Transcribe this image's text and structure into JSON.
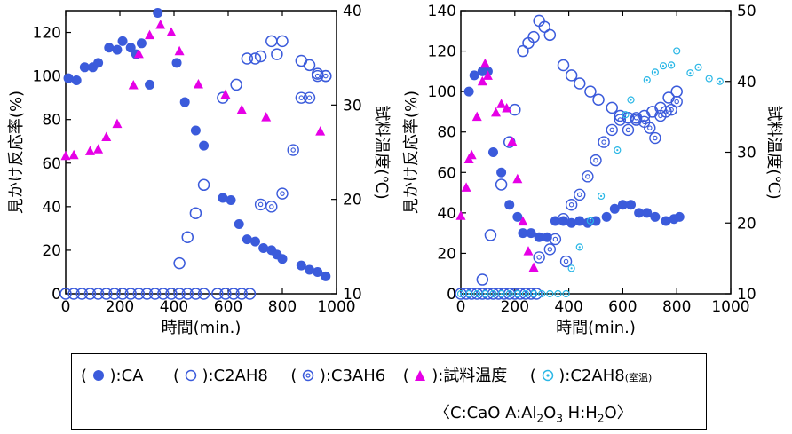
{
  "chart_data": [
    {
      "type": "scatter",
      "title": "",
      "xlabel": "時間(min.)",
      "ylabel_left": "見かけ反応率(%)",
      "ylabel_right": "試料温度(℃)",
      "xlim": [
        0,
        1000
      ],
      "ylim_left": [
        0,
        130
      ],
      "ylim_right": [
        10,
        40
      ],
      "x_ticks": [
        0,
        200,
        400,
        600,
        800,
        1000
      ],
      "y_ticks_left": [
        0,
        20,
        40,
        60,
        80,
        100,
        120
      ],
      "y_ticks_right": [
        10,
        20,
        30,
        40
      ],
      "series": [
        {
          "name": "CA",
          "axis": "left",
          "marker": "filled-circle",
          "color": "#3b5bdb",
          "points": [
            [
              10,
              99
            ],
            [
              40,
              98
            ],
            [
              70,
              104
            ],
            [
              100,
              104
            ],
            [
              120,
              106
            ],
            [
              160,
              113
            ],
            [
              190,
              112
            ],
            [
              210,
              116
            ],
            [
              240,
              113
            ],
            [
              260,
              110
            ],
            [
              280,
              115
            ],
            [
              310,
              96
            ],
            [
              340,
              129
            ],
            [
              410,
              106
            ],
            [
              440,
              88
            ],
            [
              480,
              75
            ],
            [
              510,
              68
            ],
            [
              580,
              44
            ],
            [
              610,
              43
            ],
            [
              640,
              32
            ],
            [
              670,
              25
            ],
            [
              700,
              24
            ],
            [
              730,
              21
            ],
            [
              760,
              20
            ],
            [
              780,
              18
            ],
            [
              800,
              16
            ],
            [
              870,
              13
            ],
            [
              900,
              11
            ],
            [
              930,
              10
            ],
            [
              960,
              8
            ]
          ]
        },
        {
          "name": "C2AH8",
          "axis": "left",
          "marker": "open-circle",
          "color": "#3b5bdb",
          "points": [
            [
              0,
              0
            ],
            [
              30,
              0
            ],
            [
              60,
              0
            ],
            [
              90,
              0
            ],
            [
              120,
              0
            ],
            [
              150,
              0
            ],
            [
              180,
              0
            ],
            [
              210,
              0
            ],
            [
              240,
              0
            ],
            [
              270,
              0
            ],
            [
              300,
              0
            ],
            [
              330,
              0
            ],
            [
              360,
              0
            ],
            [
              390,
              0
            ],
            [
              420,
              0
            ],
            [
              450,
              0
            ],
            [
              480,
              0
            ],
            [
              510,
              0
            ],
            [
              560,
              0
            ],
            [
              590,
              0
            ],
            [
              620,
              0
            ],
            [
              650,
              0
            ],
            [
              680,
              0
            ],
            [
              420,
              14
            ],
            [
              450,
              26
            ],
            [
              480,
              37
            ],
            [
              510,
              50
            ],
            [
              580,
              90
            ],
            [
              630,
              96
            ],
            [
              670,
              108
            ],
            [
              700,
              108
            ],
            [
              720,
              109
            ],
            [
              760,
              116
            ],
            [
              780,
              110
            ],
            [
              800,
              116
            ],
            [
              870,
              107
            ],
            [
              900,
              105
            ],
            [
              930,
              101
            ],
            [
              960,
              100
            ]
          ]
        },
        {
          "name": "C3AH6",
          "axis": "left",
          "marker": "dot-circle",
          "color": "#3b5bdb",
          "points": [
            [
              720,
              41
            ],
            [
              760,
              40
            ],
            [
              800,
              46
            ],
            [
              840,
              66
            ],
            [
              870,
              90
            ],
            [
              900,
              90
            ],
            [
              930,
              100
            ],
            [
              960,
              100
            ]
          ]
        },
        {
          "name": "試料温度",
          "axis": "right",
          "marker": "triangle",
          "color": "#e600e6",
          "points": [
            [
              0,
              24.6
            ],
            [
              30,
              24.7
            ],
            [
              90,
              25.1
            ],
            [
              120,
              25.3
            ],
            [
              150,
              26.6
            ],
            [
              190,
              28
            ],
            [
              250,
              32.1
            ],
            [
              270,
              35.4
            ],
            [
              310,
              37.4
            ],
            [
              350,
              38.5
            ],
            [
              390,
              37.7
            ],
            [
              420,
              35.7
            ],
            [
              490,
              32.2
            ],
            [
              590,
              31.1
            ],
            [
              650,
              29.5
            ],
            [
              740,
              28.7
            ],
            [
              940,
              27.2
            ]
          ]
        }
      ]
    },
    {
      "type": "scatter",
      "title": "",
      "xlabel": "時間(min.)",
      "ylabel_left": "見かけ反応率(%)",
      "ylabel_right": "試料温度(℃)",
      "xlim": [
        0,
        1000
      ],
      "ylim_left": [
        0,
        140
      ],
      "ylim_right": [
        10,
        50
      ],
      "x_ticks": [
        0,
        200,
        400,
        600,
        800,
        1000
      ],
      "y_ticks_left": [
        0,
        20,
        40,
        60,
        80,
        100,
        120,
        140
      ],
      "y_ticks_right": [
        10,
        20,
        30,
        40,
        50
      ],
      "series": [
        {
          "name": "CA",
          "axis": "left",
          "marker": "filled-circle",
          "color": "#3b5bdb",
          "points": [
            [
              30,
              100
            ],
            [
              50,
              108
            ],
            [
              80,
              110
            ],
            [
              100,
              110
            ],
            [
              120,
              70
            ],
            [
              150,
              60
            ],
            [
              180,
              44
            ],
            [
              210,
              38
            ],
            [
              230,
              30
            ],
            [
              260,
              30
            ],
            [
              290,
              28
            ],
            [
              320,
              28
            ],
            [
              350,
              36
            ],
            [
              380,
              36
            ],
            [
              410,
              35
            ],
            [
              440,
              36
            ],
            [
              470,
              35
            ],
            [
              500,
              36
            ],
            [
              540,
              38
            ],
            [
              570,
              42
            ],
            [
              600,
              44
            ],
            [
              630,
              44
            ],
            [
              660,
              40
            ],
            [
              690,
              40
            ],
            [
              720,
              38
            ],
            [
              760,
              36
            ],
            [
              790,
              37
            ],
            [
              810,
              38
            ]
          ]
        },
        {
          "name": "C2AH8",
          "axis": "left",
          "marker": "open-circle",
          "color": "#3b5bdb",
          "points": [
            [
              0,
              0
            ],
            [
              20,
              0
            ],
            [
              40,
              0
            ],
            [
              60,
              0
            ],
            [
              80,
              0
            ],
            [
              100,
              0
            ],
            [
              120,
              0
            ],
            [
              140,
              0
            ],
            [
              160,
              0
            ],
            [
              180,
              0
            ],
            [
              200,
              0
            ],
            [
              220,
              0
            ],
            [
              240,
              0
            ],
            [
              260,
              0
            ],
            [
              280,
              0
            ],
            [
              80,
              7
            ],
            [
              110,
              29
            ],
            [
              150,
              54
            ],
            [
              180,
              75
            ],
            [
              200,
              91
            ],
            [
              230,
              120
            ],
            [
              250,
              124
            ],
            [
              270,
              127
            ],
            [
              290,
              135
            ],
            [
              310,
              132
            ],
            [
              330,
              128
            ],
            [
              380,
              113
            ],
            [
              410,
              108
            ],
            [
              440,
              104
            ],
            [
              480,
              100
            ],
            [
              510,
              96
            ],
            [
              560,
              92
            ],
            [
              590,
              88
            ],
            [
              620,
              87
            ],
            [
              650,
              86
            ],
            [
              680,
              88
            ],
            [
              710,
              90
            ],
            [
              740,
              92
            ],
            [
              770,
              97
            ],
            [
              800,
              100
            ]
          ]
        },
        {
          "name": "C3AH6",
          "axis": "left",
          "marker": "dot-circle",
          "color": "#3b5bdb",
          "points": [
            [
              290,
              18
            ],
            [
              330,
              22
            ],
            [
              350,
              27
            ],
            [
              380,
              37
            ],
            [
              410,
              44
            ],
            [
              440,
              49
            ],
            [
              470,
              58
            ],
            [
              500,
              66
            ],
            [
              530,
              75
            ],
            [
              560,
              81
            ],
            [
              590,
              86
            ],
            [
              620,
              81
            ],
            [
              650,
              87
            ],
            [
              680,
              85
            ],
            [
              700,
              82
            ],
            [
              720,
              77
            ],
            [
              740,
              88
            ],
            [
              760,
              90
            ],
            [
              780,
              91
            ],
            [
              800,
              95
            ],
            [
              390,
              16
            ]
          ]
        },
        {
          "name": "C2AH8(室温)",
          "axis": "right",
          "marker": "dot-circle",
          "color": "#2ab7e6",
          "points": [
            [
              0,
              10
            ],
            [
              30,
              10
            ],
            [
              60,
              10
            ],
            [
              90,
              10
            ],
            [
              120,
              10
            ],
            [
              150,
              10
            ],
            [
              180,
              10
            ],
            [
              210,
              10
            ],
            [
              240,
              10
            ],
            [
              270,
              10
            ],
            [
              300,
              10
            ],
            [
              330,
              10
            ],
            [
              360,
              10
            ],
            [
              390,
              10
            ],
            [
              410,
              13.6
            ],
            [
              440,
              16.6
            ],
            [
              480,
              20.3
            ],
            [
              520,
              23.8
            ],
            [
              580,
              30.3
            ],
            [
              610,
              35.3
            ],
            [
              630,
              37.4
            ],
            [
              690,
              40.2
            ],
            [
              720,
              41.3
            ],
            [
              750,
              42.2
            ],
            [
              780,
              42.3
            ],
            [
              800,
              44.3
            ],
            [
              850,
              41.2
            ],
            [
              880,
              42.0
            ],
            [
              920,
              40.4
            ],
            [
              960,
              40.0
            ]
          ]
        },
        {
          "name": "試料温度",
          "axis": "right",
          "marker": "triangle",
          "color": "#e600e6",
          "points": [
            [
              0,
              21
            ],
            [
              20,
              25
            ],
            [
              30,
              29
            ],
            [
              40,
              29.6
            ],
            [
              60,
              35
            ],
            [
              80,
              40
            ],
            [
              90,
              42.5
            ],
            [
              100,
              40.8
            ],
            [
              130,
              35.6
            ],
            [
              150,
              36.8
            ],
            [
              170,
              36.2
            ],
            [
              190,
              31.5
            ],
            [
              210,
              26.2
            ],
            [
              230,
              20.2
            ],
            [
              250,
              16
            ],
            [
              270,
              13.7
            ]
          ]
        }
      ]
    }
  ],
  "legend": {
    "ca_open": "(",
    "ca_label": "):CA",
    "c2ah8_open": "(",
    "c2ah8_label": "):C2AH8",
    "c3ah6_open": "(",
    "c3ah6_label": "):C3AH6",
    "temp_open": "(",
    "temp_label": "):試料温度",
    "rt_open": "(",
    "rt_label": "):C2AH8",
    "rt_note": "(室温)",
    "notation_open": "〈C:CaO  A:Al",
    "notation_sub1": "2",
    "notation_mid": "O",
    "notation_sub2": "3",
    "notation_end": "  H:H",
    "notation_sub3": "2",
    "notation_close": "O〉"
  },
  "colors": {
    "blue": "#3b5bdb",
    "magenta": "#e600e6",
    "cyan": "#2ab7e6"
  }
}
